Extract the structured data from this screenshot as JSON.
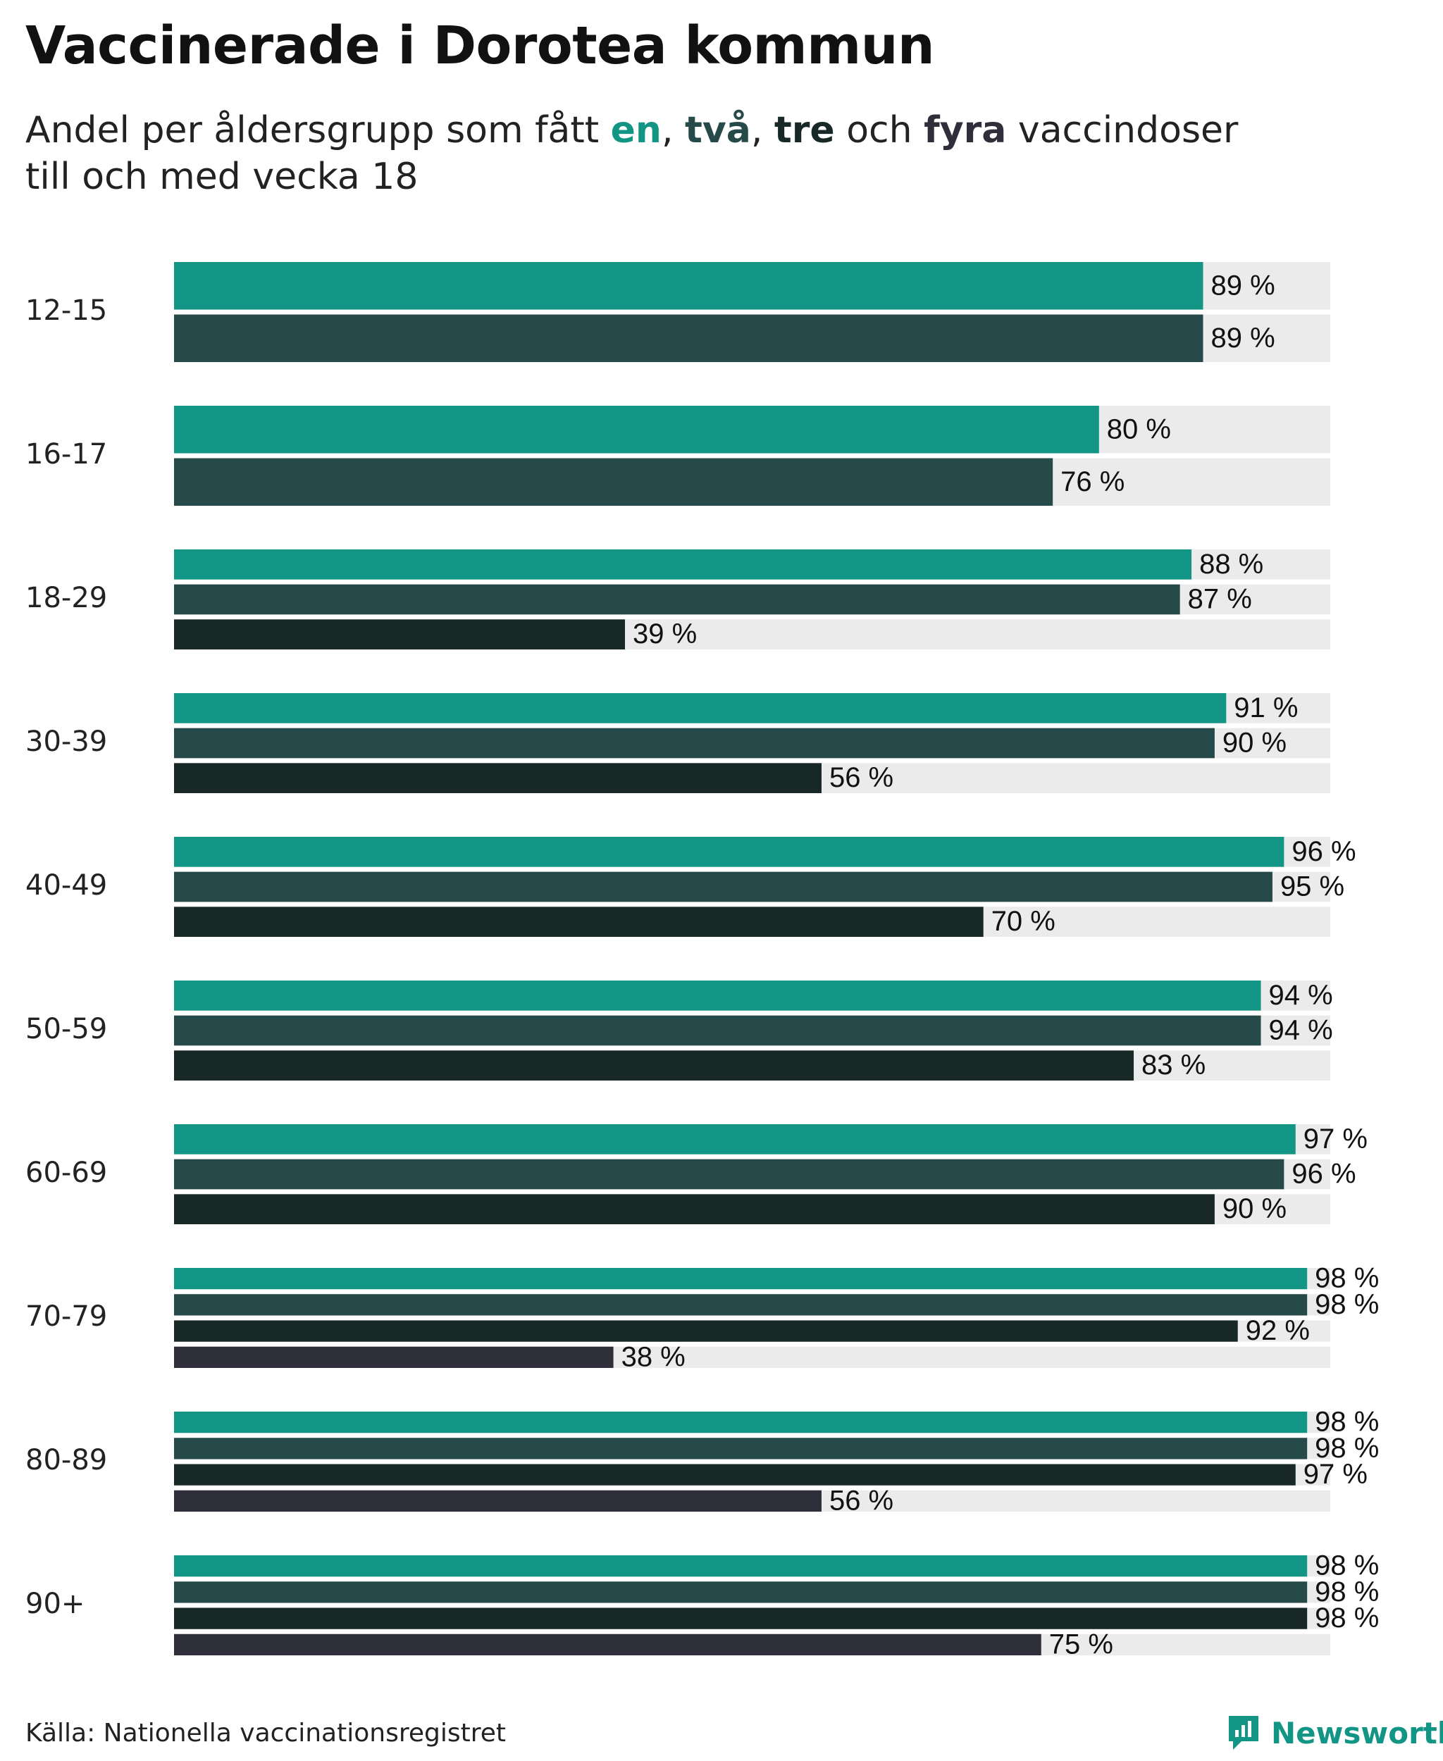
{
  "chart_data": {
    "type": "bar",
    "orientation": "horizontal",
    "title": "Vaccinerade i Dorotea kommun",
    "subtitle": {
      "prefix": "Andel per åldersgrupp som fått ",
      "terms": [
        "en",
        "två",
        "tre",
        "fyra"
      ],
      "sep1": ", ",
      "sep2": ", ",
      "conj": " och ",
      "suffix": " vaccindoser",
      "line2": "till och med vecka 18"
    },
    "categories": [
      "12-15",
      "16-17",
      "18-29",
      "30-39",
      "40-49",
      "50-59",
      "60-69",
      "70-79",
      "80-89",
      "90+"
    ],
    "series": [
      {
        "name": "en",
        "color": "#139585",
        "values": [
          89,
          80,
          88,
          91,
          96,
          94,
          97,
          98,
          98,
          98
        ]
      },
      {
        "name": "två",
        "color": "#264a49",
        "values": [
          89,
          76,
          87,
          90,
          95,
          94,
          96,
          98,
          98,
          98
        ]
      },
      {
        "name": "tre",
        "color": "#182826",
        "values": [
          null,
          null,
          39,
          56,
          70,
          83,
          90,
          92,
          97,
          98
        ]
      },
      {
        "name": "fyra",
        "color": "#2f2f3b",
        "values": [
          null,
          null,
          null,
          null,
          null,
          null,
          null,
          38,
          56,
          75
        ]
      }
    ],
    "value_suffix": " %",
    "xlim": [
      0,
      100
    ],
    "track_color": "#ebebeb",
    "xlabel": "",
    "ylabel": ""
  },
  "footer": {
    "source": "Källa: Nationella vaccinationsregistret",
    "brand": "Newsworthy",
    "brand_color": "#139585",
    "brand_icon": "bar-chart-logo-icon"
  }
}
